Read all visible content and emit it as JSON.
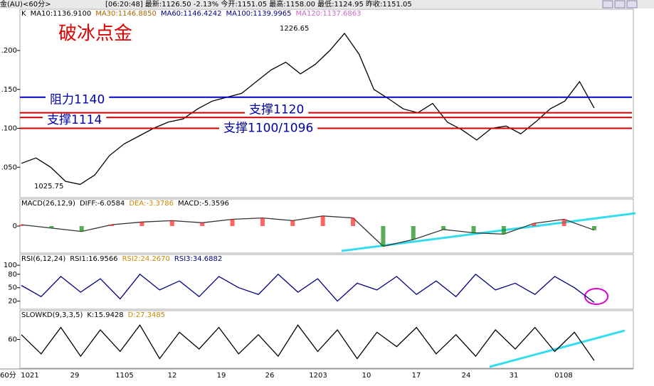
{
  "header": {
    "security": "金(AU)<60分>",
    "quote": "[06:20:48] 最新:1126.50 -2.13% 今开:1151.05 最高:1158.00 最低:1124.95 昨收:1151.05"
  },
  "price_panel": {
    "legend": [
      {
        "text": "K",
        "color": "#000000"
      },
      {
        "text": "MA10:1136.9100",
        "color": "#000000"
      },
      {
        "text": "MA30:1146.8850",
        "color": "#aa6600"
      },
      {
        "text": "MA60:1146.4242",
        "color": "#000080"
      },
      {
        "text": "MA100:1139.9965",
        "color": "#000080"
      },
      {
        "text": "MA120:1137.6863",
        "color": "#cc66cc"
      }
    ],
    "title": "破冰点金",
    "high_label": "1226.65",
    "low_label": "1025.75",
    "ylim": [
      1011,
      1253
    ],
    "yticks": [
      {
        "value": 1050,
        "label": ".050"
      },
      {
        "value": 1100,
        "label": ".100"
      },
      {
        "value": 1150,
        "label": ".150"
      },
      {
        "value": 1200,
        "label": ".200"
      }
    ],
    "close": [
      1055,
      1062,
      1050,
      1032,
      1028,
      1040,
      1065,
      1080,
      1090,
      1100,
      1108,
      1112,
      1125,
      1135,
      1140,
      1145,
      1160,
      1175,
      1185,
      1170,
      1182,
      1200,
      1222,
      1195,
      1150,
      1138,
      1125,
      1120,
      1132,
      1108,
      1098,
      1085,
      1100,
      1103,
      1093,
      1108,
      1125,
      1135,
      1160,
      1126
    ],
    "levels": [
      {
        "label": "阻力1140",
        "value": 1140,
        "color": "#0000cc"
      },
      {
        "label": "支撑1120",
        "value": 1120,
        "color": "#cc0000"
      },
      {
        "label": "支撑1114",
        "value": 1114,
        "color": "#cc0000"
      },
      {
        "label": "支撑1100/1096",
        "value": 1100,
        "color": "#cc0000"
      }
    ]
  },
  "macd_panel": {
    "legend": [
      {
        "text": "MACD(26,12,9)",
        "color": "#000000"
      },
      {
        "text": "DIFF:-6.0584",
        "color": "#000000"
      },
      {
        "text": "DEA:-3.3786",
        "color": "#cc8800"
      },
      {
        "text": "MACD:-5.3596",
        "color": "#000000"
      }
    ],
    "ylim": [
      -40,
      40
    ],
    "yticks": [
      0
    ],
    "diff": [
      2,
      -3,
      -8,
      2,
      6,
      8,
      5,
      10,
      12,
      8,
      15,
      12,
      -30,
      -20,
      -5,
      -10,
      -12,
      4,
      10,
      -6
    ]
  },
  "rsi_panel": {
    "legend": [
      {
        "text": "RSI(6,12,24)",
        "color": "#000000"
      },
      {
        "text": "RSI1:16.9566",
        "color": "#000000"
      },
      {
        "text": "RSI2:24.2670",
        "color": "#cc8800"
      },
      {
        "text": "RSI3:34.6882",
        "color": "#000080"
      }
    ],
    "ylim": [
      2,
      124
    ],
    "yticks": [
      20,
      50,
      80,
      100
    ],
    "rsi1": [
      55,
      30,
      75,
      40,
      70,
      25,
      80,
      45,
      65,
      30,
      75,
      50,
      35,
      80,
      40,
      70,
      20,
      60,
      45,
      75,
      35,
      65,
      30,
      80,
      45,
      60,
      35,
      75,
      50,
      17
    ]
  },
  "kd_panel": {
    "legend": [
      {
        "text": "SLOWKD(9,3,3,5)",
        "color": "#000000"
      },
      {
        "text": "K:15.9428",
        "color": "#000000"
      },
      {
        "text": "D:27.3485",
        "color": "#cc8800"
      }
    ],
    "ylim": [
      0,
      120
    ],
    "yticks": [
      60
    ],
    "k": [
      70,
      30,
      85,
      25,
      80,
      35,
      90,
      20,
      75,
      40,
      85,
      30,
      70,
      25,
      90,
      35,
      80,
      20,
      75,
      45,
      85,
      30,
      70,
      25,
      80,
      40,
      85,
      35,
      75,
      16
    ]
  },
  "x_axis": {
    "period": "60分",
    "labels": [
      "1021",
      "29",
      "1105",
      "12",
      "19",
      "26",
      "1203",
      "10",
      "17",
      "24",
      "31",
      "0108"
    ]
  }
}
